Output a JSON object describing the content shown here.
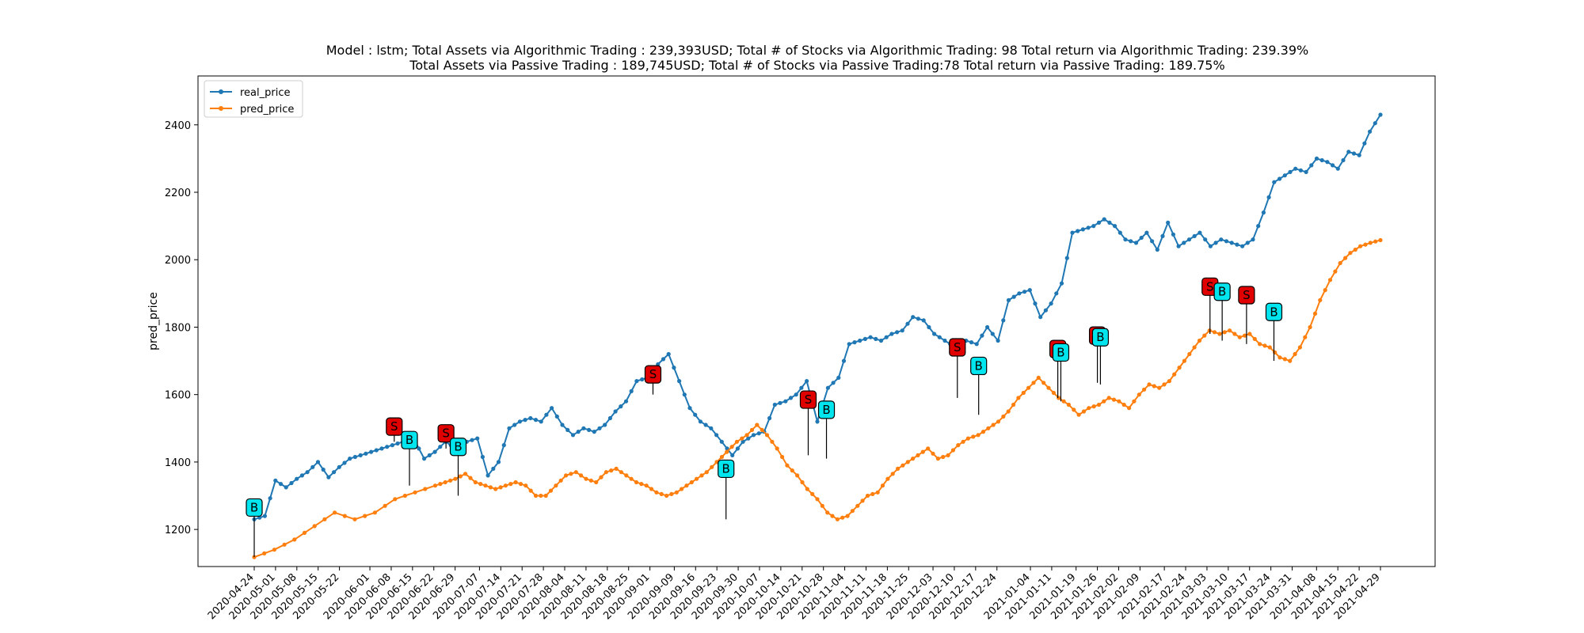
{
  "chart_data": {
    "type": "line",
    "title_line1": "Model : lstm; Total Assets via Algorithmic Trading : 239,393USD;  Total # of Stocks via Algorithmic Trading: 98  Total return via Algorithmic Trading: 239.39%",
    "title_line2": "Total Assets via Passive Trading : 189,745USD;   Total # of Stocks via Passive Trading:78  Total return via Passive Trading: 189.75%",
    "xlabel": "",
    "ylabel": "pred_price",
    "ylim": [
      1090,
      2545
    ],
    "yticks": [
      1200,
      1400,
      1600,
      1800,
      2000,
      2200,
      2400
    ],
    "xticks": [
      "2020-04-24",
      "2020-05-01",
      "2020-05-08",
      "2020-05-15",
      "2020-05-22",
      "2020-06-01",
      "2020-06-08",
      "2020-06-15",
      "2020-06-22",
      "2020-06-29",
      "2020-07-07",
      "2020-07-14",
      "2020-07-21",
      "2020-07-28",
      "2020-08-04",
      "2020-08-11",
      "2020-08-18",
      "2020-08-25",
      "2020-09-01",
      "2020-09-09",
      "2020-09-16",
      "2020-09-23",
      "2020-09-30",
      "2020-10-07",
      "2020-10-14",
      "2020-10-21",
      "2020-10-28",
      "2020-11-04",
      "2020-11-11",
      "2020-11-18",
      "2020-11-25",
      "2020-12-03",
      "2020-12-10",
      "2020-12-17",
      "2020-12-24",
      "2021-01-04",
      "2021-01-11",
      "2021-01-19",
      "2021-01-26",
      "2021-02-02",
      "2021-02-09",
      "2021-02-17",
      "2021-02-24",
      "2021-03-03",
      "2021-03-10",
      "2021-03-17",
      "2021-03-24",
      "2021-03-31",
      "2021-04-08",
      "2021-04-15",
      "2021-04-22",
      "2021-04-29"
    ],
    "grid": false,
    "legend_position": "top-left",
    "series": [
      {
        "name": "real_price",
        "color": "#1f77b4",
        "anchors": [
          [
            0,
            1230
          ],
          [
            1,
            1240
          ],
          [
            2,
            1345
          ],
          [
            3,
            1325
          ],
          [
            4,
            1350
          ],
          [
            5,
            1370
          ],
          [
            6,
            1400
          ],
          [
            7,
            1355
          ],
          [
            8,
            1385
          ],
          [
            9,
            1410
          ],
          [
            10,
            1420
          ],
          [
            11,
            1430
          ],
          [
            12,
            1440
          ],
          [
            13,
            1450
          ],
          [
            14,
            1460
          ],
          [
            15,
            1470
          ],
          [
            16,
            1410
          ],
          [
            17,
            1430
          ],
          [
            18,
            1460
          ],
          [
            19,
            1440
          ],
          [
            20,
            1460
          ],
          [
            21,
            1470
          ],
          [
            22,
            1360
          ],
          [
            23,
            1400
          ],
          [
            24,
            1500
          ],
          [
            25,
            1520
          ],
          [
            26,
            1530
          ],
          [
            27,
            1520
          ],
          [
            28,
            1560
          ],
          [
            29,
            1510
          ],
          [
            30,
            1480
          ],
          [
            31,
            1500
          ],
          [
            32,
            1490
          ],
          [
            33,
            1510
          ],
          [
            34,
            1550
          ],
          [
            35,
            1580
          ],
          [
            36,
            1640
          ],
          [
            37,
            1650
          ],
          [
            38,
            1690
          ],
          [
            39,
            1720
          ],
          [
            40,
            1640
          ],
          [
            41,
            1560
          ],
          [
            42,
            1520
          ],
          [
            43,
            1500
          ],
          [
            44,
            1460
          ],
          [
            45,
            1420
          ],
          [
            46,
            1460
          ],
          [
            47,
            1480
          ],
          [
            48,
            1490
          ],
          [
            49,
            1570
          ],
          [
            50,
            1580
          ],
          [
            51,
            1600
          ],
          [
            52,
            1640
          ],
          [
            53,
            1520
          ],
          [
            54,
            1620
          ],
          [
            55,
            1650
          ],
          [
            56,
            1750
          ],
          [
            57,
            1760
          ],
          [
            58,
            1770
          ],
          [
            59,
            1760
          ],
          [
            60,
            1780
          ],
          [
            61,
            1790
          ],
          [
            62,
            1830
          ],
          [
            63,
            1820
          ],
          [
            64,
            1780
          ],
          [
            65,
            1760
          ],
          [
            66,
            1740
          ],
          [
            67,
            1760
          ],
          [
            68,
            1750
          ],
          [
            69,
            1800
          ],
          [
            70,
            1760
          ],
          [
            71,
            1880
          ],
          [
            72,
            1900
          ],
          [
            73,
            1910
          ],
          [
            74,
            1830
          ],
          [
            75,
            1870
          ],
          [
            76,
            1930
          ],
          [
            77,
            2080
          ],
          [
            78,
            2090
          ],
          [
            79,
            2100
          ],
          [
            80,
            2120
          ],
          [
            81,
            2100
          ],
          [
            82,
            2060
          ],
          [
            83,
            2050
          ],
          [
            84,
            2080
          ],
          [
            85,
            2030
          ],
          [
            86,
            2110
          ],
          [
            87,
            2040
          ],
          [
            88,
            2060
          ],
          [
            89,
            2080
          ],
          [
            90,
            2040
          ],
          [
            91,
            2060
          ],
          [
            92,
            2050
          ],
          [
            93,
            2040
          ],
          [
            94,
            2060
          ],
          [
            95,
            2140
          ],
          [
            96,
            2230
          ],
          [
            97,
            2250
          ],
          [
            98,
            2270
          ],
          [
            99,
            2260
          ],
          [
            100,
            2300
          ],
          [
            101,
            2290
          ],
          [
            102,
            2270
          ],
          [
            103,
            2320
          ],
          [
            104,
            2310
          ],
          [
            105,
            2380
          ],
          [
            106,
            2430
          ]
        ]
      },
      {
        "name": "pred_price",
        "color": "#ff7f0e",
        "anchors": [
          [
            0,
            1118
          ],
          [
            2,
            1140
          ],
          [
            4,
            1170
          ],
          [
            6,
            1210
          ],
          [
            8,
            1250
          ],
          [
            10,
            1230
          ],
          [
            12,
            1250
          ],
          [
            14,
            1290
          ],
          [
            16,
            1310
          ],
          [
            18,
            1330
          ],
          [
            19,
            1340
          ],
          [
            20,
            1350
          ],
          [
            21,
            1365
          ],
          [
            22,
            1340
          ],
          [
            23,
            1330
          ],
          [
            24,
            1320
          ],
          [
            25,
            1330
          ],
          [
            26,
            1340
          ],
          [
            27,
            1330
          ],
          [
            28,
            1300
          ],
          [
            29,
            1300
          ],
          [
            30,
            1330
          ],
          [
            31,
            1360
          ],
          [
            32,
            1370
          ],
          [
            33,
            1350
          ],
          [
            34,
            1340
          ],
          [
            35,
            1370
          ],
          [
            36,
            1380
          ],
          [
            37,
            1360
          ],
          [
            38,
            1340
          ],
          [
            39,
            1330
          ],
          [
            40,
            1310
          ],
          [
            41,
            1300
          ],
          [
            42,
            1310
          ],
          [
            43,
            1330
          ],
          [
            44,
            1350
          ],
          [
            45,
            1370
          ],
          [
            46,
            1400
          ],
          [
            47,
            1430
          ],
          [
            48,
            1460
          ],
          [
            49,
            1480
          ],
          [
            50,
            1510
          ],
          [
            51,
            1480
          ],
          [
            52,
            1440
          ],
          [
            53,
            1390
          ],
          [
            54,
            1360
          ],
          [
            55,
            1320
          ],
          [
            56,
            1290
          ],
          [
            57,
            1250
          ],
          [
            58,
            1230
          ],
          [
            59,
            1240
          ],
          [
            60,
            1270
          ],
          [
            61,
            1300
          ],
          [
            62,
            1310
          ],
          [
            63,
            1350
          ],
          [
            64,
            1380
          ],
          [
            65,
            1400
          ],
          [
            66,
            1420
          ],
          [
            67,
            1440
          ],
          [
            68,
            1410
          ],
          [
            69,
            1420
          ],
          [
            70,
            1450
          ],
          [
            71,
            1470
          ],
          [
            72,
            1480
          ],
          [
            73,
            1500
          ],
          [
            74,
            1520
          ],
          [
            75,
            1550
          ],
          [
            76,
            1590
          ],
          [
            77,
            1620
          ],
          [
            78,
            1650
          ],
          [
            79,
            1620
          ],
          [
            80,
            1590
          ],
          [
            81,
            1570
          ],
          [
            82,
            1540
          ],
          [
            83,
            1560
          ],
          [
            84,
            1570
          ],
          [
            85,
            1590
          ],
          [
            86,
            1580
          ],
          [
            87,
            1560
          ],
          [
            88,
            1600
          ],
          [
            89,
            1630
          ],
          [
            90,
            1620
          ],
          [
            91,
            1640
          ],
          [
            92,
            1680
          ],
          [
            93,
            1720
          ],
          [
            94,
            1760
          ],
          [
            95,
            1790
          ],
          [
            96,
            1780
          ],
          [
            97,
            1790
          ],
          [
            98,
            1770
          ],
          [
            99,
            1780
          ],
          [
            100,
            1750
          ],
          [
            101,
            1740
          ],
          [
            102,
            1710
          ],
          [
            103,
            1700
          ],
          [
            104,
            1740
          ],
          [
            105,
            1800
          ],
          [
            106,
            1880
          ],
          [
            107,
            1940
          ],
          [
            108,
            1990
          ],
          [
            109,
            2020
          ],
          [
            110,
            2040
          ],
          [
            111,
            2050
          ],
          [
            112,
            2058
          ]
        ]
      }
    ],
    "markers": [
      {
        "label": "B",
        "date": "2020-04-24",
        "label_y": 1265,
        "price": 1118
      },
      {
        "label": "S",
        "date": "2020-06-09",
        "label_y": 1505,
        "price": 1460
      },
      {
        "label": "B",
        "date": "2020-06-14",
        "label_y": 1465,
        "price": 1330
      },
      {
        "label": "S",
        "date": "2020-06-26",
        "label_y": 1485,
        "price": 1440
      },
      {
        "label": "B",
        "date": "2020-06-30",
        "label_y": 1445,
        "price": 1300
      },
      {
        "label": "S",
        "date": "2020-09-02",
        "label_y": 1660,
        "price": 1600
      },
      {
        "label": "B",
        "date": "2020-09-26",
        "label_y": 1380,
        "price": 1230
      },
      {
        "label": "S",
        "date": "2020-10-23",
        "label_y": 1585,
        "price": 1420
      },
      {
        "label": "B",
        "date": "2020-10-29",
        "label_y": 1555,
        "price": 1410
      },
      {
        "label": "S",
        "date": "2020-12-11",
        "label_y": 1740,
        "price": 1590
      },
      {
        "label": "B",
        "date": "2020-12-18",
        "label_y": 1685,
        "price": 1540
      },
      {
        "label": "S",
        "date": "2021-01-13",
        "label_y": 1735,
        "price": 1590
      },
      {
        "label": "B",
        "date": "2021-01-14",
        "label_y": 1725,
        "price": 1580
      },
      {
        "label": "S",
        "date": "2021-01-26",
        "label_y": 1775,
        "price": 1635
      },
      {
        "label": "B",
        "date": "2021-01-27",
        "label_y": 1770,
        "price": 1630
      },
      {
        "label": "S",
        "date": "2021-03-04",
        "label_y": 1920,
        "price": 1780
      },
      {
        "label": "B",
        "date": "2021-03-08",
        "label_y": 1905,
        "price": 1760
      },
      {
        "label": "S",
        "date": "2021-03-16",
        "label_y": 1895,
        "price": 1750
      },
      {
        "label": "B",
        "date": "2021-03-25",
        "label_y": 1845,
        "price": 1700
      }
    ],
    "marker_colors": {
      "B": "#00e5ee",
      "S": "#e00000"
    }
  }
}
